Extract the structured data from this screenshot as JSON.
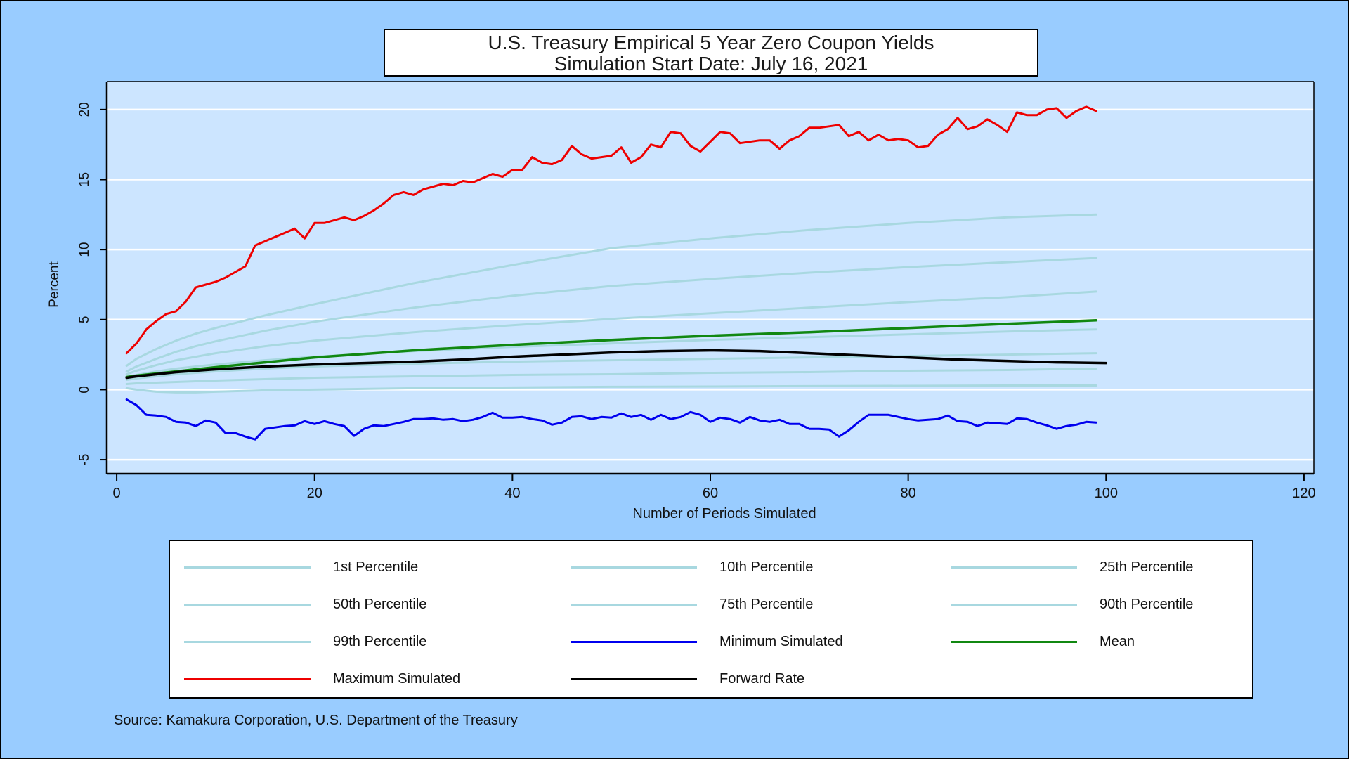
{
  "title": {
    "line1": "U.S. Treasury Empirical 5 Year Zero Coupon Yields",
    "line2": "Simulation Start Date: July 16, 2021"
  },
  "source": "Source: Kamakura Corporation, U.S. Department of the Treasury",
  "colors": {
    "background": "#99ccff",
    "plot_background": "#cce5ff",
    "percentile": "#a8d8e0",
    "minimum": "#0000ee",
    "maximum": "#ee0000",
    "mean": "#118811",
    "forward": "#000000"
  },
  "chart_data": {
    "type": "line",
    "title": "U.S. Treasury Empirical 5 Year Zero Coupon Yields",
    "subtitle": "Simulation Start Date: July 16, 2021",
    "xlabel": "Number of Periods Simulated",
    "ylabel": "Percent",
    "xlim": [
      -1,
      121
    ],
    "ylim": [
      -6,
      22
    ],
    "xticks": [
      0,
      20,
      40,
      60,
      80,
      100,
      120
    ],
    "yticks": [
      -5,
      0,
      5,
      10,
      15,
      20
    ],
    "grid": true,
    "legend_position": "bottom",
    "series": [
      {
        "name": "1st Percentile",
        "style": "percentile",
        "x": [
          1,
          2,
          4,
          6,
          8,
          10,
          15,
          20,
          30,
          40,
          50,
          60,
          70,
          80,
          90,
          99
        ],
        "y": [
          0.1,
          0.0,
          -0.15,
          -0.2,
          -0.2,
          -0.15,
          -0.05,
          0.0,
          0.1,
          0.15,
          0.2,
          0.22,
          0.25,
          0.27,
          0.3,
          0.3
        ]
      },
      {
        "name": "10th Percentile",
        "style": "percentile",
        "x": [
          1,
          2,
          4,
          6,
          8,
          10,
          15,
          20,
          30,
          40,
          50,
          60,
          70,
          80,
          90,
          99
        ],
        "y": [
          0.4,
          0.45,
          0.5,
          0.55,
          0.6,
          0.65,
          0.75,
          0.85,
          0.95,
          1.05,
          1.1,
          1.2,
          1.25,
          1.35,
          1.4,
          1.5
        ]
      },
      {
        "name": "25th Percentile",
        "style": "percentile",
        "x": [
          1,
          2,
          4,
          6,
          8,
          10,
          15,
          20,
          30,
          40,
          50,
          60,
          70,
          80,
          90,
          99
        ],
        "y": [
          0.7,
          0.8,
          0.95,
          1.1,
          1.2,
          1.3,
          1.5,
          1.65,
          1.85,
          2.0,
          2.1,
          2.2,
          2.3,
          2.4,
          2.5,
          2.6
        ]
      },
      {
        "name": "50th Percentile",
        "style": "percentile",
        "x": [
          1,
          2,
          4,
          6,
          8,
          10,
          15,
          20,
          30,
          40,
          50,
          60,
          70,
          80,
          90,
          99
        ],
        "y": [
          0.9,
          1.05,
          1.3,
          1.5,
          1.65,
          1.8,
          2.1,
          2.35,
          2.75,
          3.05,
          3.3,
          3.55,
          3.75,
          3.95,
          4.15,
          4.3
        ]
      },
      {
        "name": "75th Percentile",
        "style": "percentile",
        "x": [
          1,
          2,
          4,
          6,
          8,
          10,
          15,
          20,
          30,
          40,
          50,
          60,
          70,
          80,
          90,
          99
        ],
        "y": [
          1.1,
          1.35,
          1.75,
          2.1,
          2.35,
          2.6,
          3.1,
          3.5,
          4.1,
          4.6,
          5.05,
          5.45,
          5.85,
          6.25,
          6.6,
          7.0
        ]
      },
      {
        "name": "90th Percentile",
        "style": "percentile",
        "x": [
          1,
          2,
          4,
          6,
          8,
          10,
          15,
          20,
          30,
          40,
          50,
          60,
          70,
          80,
          90,
          99
        ],
        "y": [
          1.3,
          1.65,
          2.2,
          2.7,
          3.1,
          3.45,
          4.2,
          4.85,
          5.85,
          6.7,
          7.4,
          7.9,
          8.35,
          8.75,
          9.1,
          9.4
        ]
      },
      {
        "name": "99th Percentile",
        "style": "percentile",
        "x": [
          1,
          2,
          4,
          6,
          8,
          10,
          15,
          20,
          30,
          40,
          50,
          60,
          70,
          80,
          90,
          99
        ],
        "y": [
          1.7,
          2.2,
          2.9,
          3.5,
          4.0,
          4.4,
          5.3,
          6.1,
          7.6,
          8.9,
          10.1,
          10.8,
          11.4,
          11.9,
          12.3,
          12.5
        ]
      },
      {
        "name": "Minimum Simulated",
        "style": "minimum",
        "x": [
          1,
          2,
          3,
          4,
          5,
          6,
          7,
          8,
          9,
          10,
          11,
          12,
          13,
          14,
          15,
          16,
          17,
          18,
          19,
          20,
          21,
          22,
          23,
          24,
          25,
          26,
          27,
          28,
          29,
          30,
          31,
          32,
          33,
          34,
          35,
          36,
          37,
          38,
          39,
          40,
          41,
          42,
          43,
          44,
          45,
          46,
          47,
          48,
          49,
          50,
          51,
          52,
          53,
          54,
          55,
          56,
          57,
          58,
          59,
          60,
          61,
          62,
          63,
          64,
          65,
          66,
          67,
          68,
          69,
          70,
          71,
          72,
          73,
          74,
          75,
          76,
          77,
          78,
          79,
          80,
          81,
          82,
          83,
          84,
          85,
          86,
          87,
          88,
          89,
          90,
          91,
          92,
          93,
          94,
          95,
          96,
          97,
          98,
          99
        ],
        "y": [
          -0.7,
          -1.1,
          -1.8,
          -1.85,
          -1.95,
          -2.3,
          -2.35,
          -2.6,
          -2.2,
          -2.35,
          -3.1,
          -3.1,
          -3.35,
          -3.55,
          -2.8,
          -2.7,
          -2.6,
          -2.55,
          -2.25,
          -2.45,
          -2.25,
          -2.45,
          -2.6,
          -3.3,
          -2.8,
          -2.55,
          -2.6,
          -2.45,
          -2.3,
          -2.1,
          -2.1,
          -2.05,
          -2.15,
          -2.1,
          -2.25,
          -2.15,
          -1.95,
          -1.65,
          -2.0,
          -2.0,
          -1.95,
          -2.1,
          -2.2,
          -2.5,
          -2.35,
          -1.95,
          -1.9,
          -2.1,
          -1.95,
          -2.0,
          -1.7,
          -1.95,
          -1.8,
          -2.15,
          -1.8,
          -2.1,
          -1.95,
          -1.6,
          -1.8,
          -2.3,
          -2.0,
          -2.1,
          -2.35,
          -1.95,
          -2.2,
          -2.3,
          -2.15,
          -2.45,
          -2.45,
          -2.8,
          -2.8,
          -2.85,
          -3.35,
          -2.9,
          -2.3,
          -1.8,
          -1.8,
          -1.8,
          -1.95,
          -2.1,
          -2.2,
          -2.15,
          -2.1,
          -1.85,
          -2.25,
          -2.3,
          -2.6,
          -2.35,
          -2.4,
          -2.45,
          -2.05,
          -2.1,
          -2.35,
          -2.55,
          -2.8,
          -2.6,
          -2.5,
          -2.3,
          -2.35
        ]
      },
      {
        "name": "Mean",
        "style": "mean",
        "x": [
          1,
          2,
          4,
          6,
          8,
          10,
          15,
          20,
          30,
          40,
          50,
          60,
          70,
          80,
          90,
          99
        ],
        "y": [
          0.9,
          1.0,
          1.15,
          1.3,
          1.45,
          1.6,
          1.95,
          2.3,
          2.8,
          3.2,
          3.55,
          3.85,
          4.1,
          4.4,
          4.7,
          4.95
        ]
      },
      {
        "name": "Maximum Simulated",
        "style": "maximum",
        "x": [
          1,
          2,
          3,
          4,
          5,
          6,
          7,
          8,
          9,
          10,
          11,
          12,
          13,
          14,
          15,
          16,
          17,
          18,
          19,
          20,
          21,
          22,
          23,
          24,
          25,
          26,
          27,
          28,
          29,
          30,
          31,
          32,
          33,
          34,
          35,
          36,
          37,
          38,
          39,
          40,
          41,
          42,
          43,
          44,
          45,
          46,
          47,
          48,
          49,
          50,
          51,
          52,
          53,
          54,
          55,
          56,
          57,
          58,
          59,
          60,
          61,
          62,
          63,
          64,
          65,
          66,
          67,
          68,
          69,
          70,
          71,
          72,
          73,
          74,
          75,
          76,
          77,
          78,
          79,
          80,
          81,
          82,
          83,
          84,
          85,
          86,
          87,
          88,
          89,
          90,
          91,
          92,
          93,
          94,
          95,
          96,
          97,
          98,
          99
        ],
        "y": [
          2.6,
          3.3,
          4.3,
          4.9,
          5.4,
          5.6,
          6.3,
          7.3,
          7.5,
          7.7,
          8.0,
          8.4,
          8.8,
          10.3,
          10.6,
          10.9,
          11.2,
          11.5,
          10.8,
          11.9,
          11.9,
          12.1,
          12.3,
          12.1,
          12.4,
          12.8,
          13.3,
          13.9,
          14.1,
          13.9,
          14.3,
          14.5,
          14.7,
          14.6,
          14.9,
          14.8,
          15.1,
          15.4,
          15.2,
          15.7,
          15.7,
          16.6,
          16.2,
          16.1,
          16.4,
          17.4,
          16.8,
          16.5,
          16.6,
          16.7,
          17.3,
          16.2,
          16.6,
          17.5,
          17.3,
          18.4,
          18.3,
          17.4,
          17.0,
          17.7,
          18.4,
          18.3,
          17.6,
          17.7,
          17.8,
          17.8,
          17.2,
          17.8,
          18.1,
          18.7,
          18.7,
          18.8,
          18.9,
          18.1,
          18.4,
          17.8,
          18.2,
          17.8,
          17.9,
          17.8,
          17.3,
          17.4,
          18.2,
          18.6,
          19.4,
          18.6,
          18.8,
          19.3,
          18.9,
          18.4,
          19.8,
          19.6,
          19.6,
          20.0,
          20.1,
          19.4,
          19.9,
          20.2,
          19.9
        ]
      },
      {
        "name": "Forward Rate",
        "style": "forward",
        "x": [
          1,
          2,
          4,
          6,
          8,
          10,
          15,
          20,
          25,
          30,
          35,
          40,
          45,
          50,
          55,
          60,
          65,
          70,
          75,
          80,
          85,
          90,
          95,
          100
        ],
        "y": [
          0.85,
          0.95,
          1.1,
          1.25,
          1.35,
          1.45,
          1.65,
          1.8,
          1.9,
          2.0,
          2.15,
          2.35,
          2.5,
          2.65,
          2.75,
          2.8,
          2.75,
          2.6,
          2.45,
          2.3,
          2.15,
          2.05,
          1.95,
          1.9
        ]
      }
    ]
  }
}
